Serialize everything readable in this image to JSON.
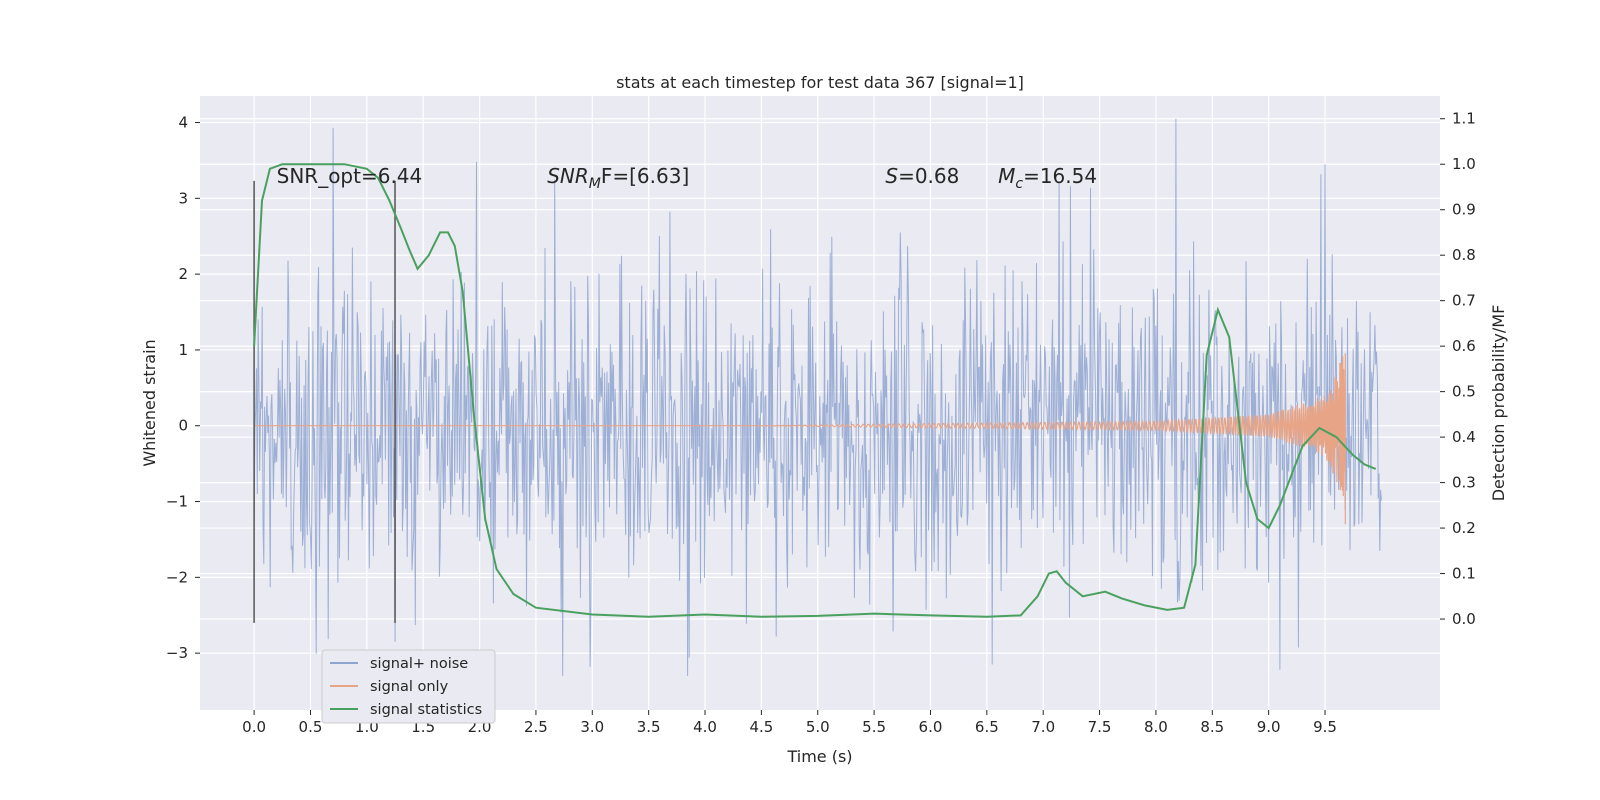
{
  "chart_data": {
    "type": "line",
    "title": "stats at each timestep for test data 367 [signal=1]",
    "xlabel": "Time (s)",
    "ylabel": "Whitened strain",
    "y2label": "Detection probability/MF",
    "xlim": [
      -0.48,
      10.52
    ],
    "ylim": [
      -3.75,
      4.35
    ],
    "y2lim": [
      -0.2,
      1.15
    ],
    "xticks": [
      0.0,
      0.5,
      1.0,
      1.5,
      2.0,
      2.5,
      3.0,
      3.5,
      4.0,
      4.5,
      5.0,
      5.5,
      6.0,
      6.5,
      7.0,
      7.5,
      8.0,
      8.5,
      9.0,
      9.5
    ],
    "xtick_labels": [
      "0.0",
      "0.5",
      "1.0",
      "1.5",
      "2.0",
      "2.5",
      "3.0",
      "3.5",
      "4.0",
      "4.5",
      "5.0",
      "5.5",
      "6.0",
      "6.5",
      "7.0",
      "7.5",
      "8.0",
      "8.5",
      "9.0",
      "9.5"
    ],
    "yticks": [
      -3,
      -2,
      -1,
      0,
      1,
      2,
      3,
      4
    ],
    "ytick_labels": [
      "−3",
      "−2",
      "−1",
      "0",
      "1",
      "2",
      "3",
      "4"
    ],
    "y2ticks": [
      0.0,
      0.1,
      0.2,
      0.3,
      0.4,
      0.5,
      0.6,
      0.7,
      0.8,
      0.9,
      1.0,
      1.1
    ],
    "y2tick_labels": [
      "0.0",
      "0.1",
      "0.2",
      "0.3",
      "0.4",
      "0.5",
      "0.6",
      "0.7",
      "0.8",
      "0.9",
      "1.0",
      "1.1"
    ],
    "grid": true,
    "legend_position": "bottom-left",
    "colors": {
      "background": "#eaeaf2",
      "grid": "#ffffff",
      "noise": "#8fa5d0",
      "signal": "#e8a487",
      "stats": "#4aa15f",
      "vline": "#555555"
    },
    "series": [
      {
        "name": "signal+ noise",
        "x_range": [
          0.0,
          10.0
        ],
        "band_typical": [
          -1.6,
          1.6
        ],
        "spike_extremes": [
          {
            "x": 0.7,
            "y": 3.93
          },
          {
            "x": 1.97,
            "y": 3.48
          },
          {
            "x": 8.18,
            "y": 4.05
          },
          {
            "x": 9.5,
            "y": 3.45
          },
          {
            "x": 1.25,
            "y": -2.85
          },
          {
            "x": 2.98,
            "y": -3.18
          },
          {
            "x": 6.55,
            "y": -3.15
          },
          {
            "x": 9.1,
            "y": -3.22
          }
        ]
      },
      {
        "name": "signal only",
        "x_range": [
          0.0,
          9.68
        ],
        "envelope": [
          {
            "x": 5.5,
            "a": 0.02
          },
          {
            "x": 8.0,
            "a": 0.06
          },
          {
            "x": 9.0,
            "a": 0.15
          },
          {
            "x": 9.5,
            "a": 0.4
          },
          {
            "x": 9.68,
            "a": 1.0
          }
        ]
      },
      {
        "name": "signal statistics",
        "axis": "right",
        "x": [
          0.0,
          0.07,
          0.14,
          0.25,
          0.4,
          0.6,
          0.8,
          1.0,
          1.1,
          1.2,
          1.3,
          1.38,
          1.45,
          1.55,
          1.65,
          1.72,
          1.78,
          1.85,
          1.95,
          2.05,
          2.15,
          2.3,
          2.5,
          3.0,
          3.5,
          4.0,
          4.5,
          5.0,
          5.5,
          6.0,
          6.5,
          6.8,
          6.95,
          7.05,
          7.12,
          7.2,
          7.35,
          7.55,
          7.7,
          7.9,
          8.1,
          8.25,
          8.35,
          8.45,
          8.55,
          8.65,
          8.8,
          8.9,
          9.0,
          9.1,
          9.3,
          9.45,
          9.6,
          9.75,
          9.85,
          9.95
        ],
        "y": [
          0.6,
          0.92,
          0.99,
          1.0,
          1.0,
          1.0,
          1.0,
          0.99,
          0.97,
          0.92,
          0.86,
          0.81,
          0.77,
          0.8,
          0.85,
          0.85,
          0.82,
          0.72,
          0.45,
          0.22,
          0.11,
          0.055,
          0.025,
          0.01,
          0.005,
          0.01,
          0.005,
          0.007,
          0.012,
          0.008,
          0.005,
          0.008,
          0.05,
          0.1,
          0.105,
          0.08,
          0.05,
          0.06,
          0.045,
          0.03,
          0.02,
          0.025,
          0.12,
          0.58,
          0.68,
          0.62,
          0.3,
          0.22,
          0.2,
          0.25,
          0.38,
          0.42,
          0.4,
          0.36,
          0.34,
          0.33
        ]
      }
    ],
    "vlines": [
      {
        "x": 0.0,
        "y0": -2.6,
        "y1": 3.23
      },
      {
        "x": 1.25,
        "y0": -2.6,
        "y1": 3.23
      }
    ],
    "annotations": [
      {
        "key": "snr_opt",
        "text": "SNR_opt=6.44",
        "x": 0.2,
        "y": 3.2
      },
      {
        "key": "snr_mf",
        "base": "SNR",
        "sub": "M",
        "rest": "F=[6.63]",
        "x": 2.6,
        "y": 3.2
      },
      {
        "key": "s_value",
        "base": "S",
        "rest": "=0.68",
        "x": 5.6,
        "y": 3.2
      },
      {
        "key": "mc_value",
        "base": "M",
        "sub": "c",
        "rest": "=16.54",
        "x": 6.6,
        "y": 3.2
      }
    ]
  }
}
